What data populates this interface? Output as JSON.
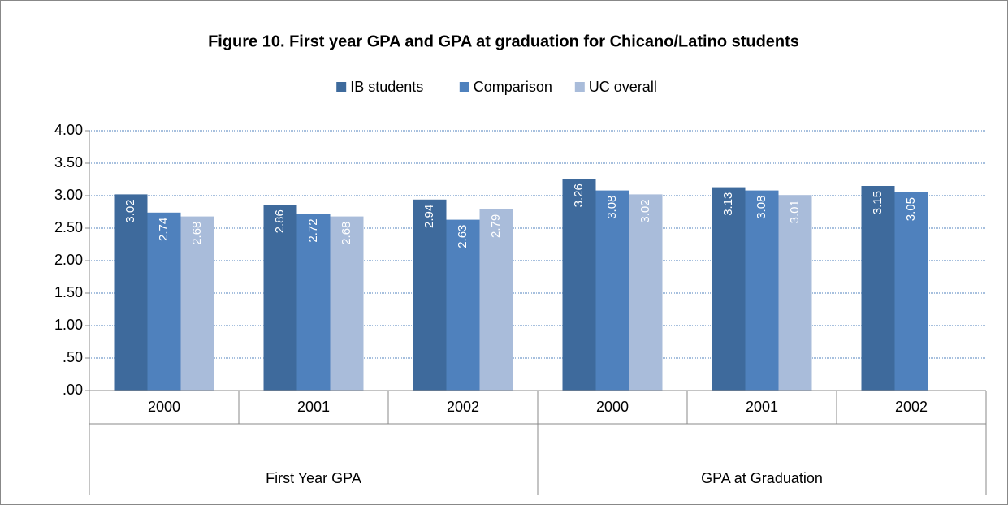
{
  "chart_data": {
    "type": "bar",
    "title": "Figure 10. First year GPA and GPA at graduation for Chicano/Latino students",
    "groups": [
      {
        "name": "First Year GPA",
        "categories": [
          "2000",
          "2001",
          "2002"
        ]
      },
      {
        "name": "GPA at Graduation",
        "categories": [
          "2000",
          "2001",
          "2002"
        ]
      }
    ],
    "series": [
      {
        "name": "IB students",
        "color": "#3e6a9c",
        "values": [
          3.02,
          2.86,
          2.94,
          3.26,
          3.13,
          3.15
        ]
      },
      {
        "name": "Comparison",
        "color": "#4f81bd",
        "values": [
          2.74,
          2.72,
          2.63,
          3.08,
          3.08,
          3.05
        ]
      },
      {
        "name": "UC overall",
        "color": "#a9bcda",
        "values": [
          2.68,
          2.68,
          2.79,
          3.02,
          3.01,
          null
        ]
      }
    ],
    "ylim": [
      0,
      4
    ],
    "yticks": [
      {
        "value": 0,
        "label": ".00"
      },
      {
        "value": 0.5,
        "label": ".50"
      },
      {
        "value": 1,
        "label": "1.00"
      },
      {
        "value": 1.5,
        "label": "1.50"
      },
      {
        "value": 2,
        "label": "2.00"
      },
      {
        "value": 2.5,
        "label": "2.50"
      },
      {
        "value": 3,
        "label": "3.00"
      },
      {
        "value": 3.5,
        "label": "3.50"
      },
      {
        "value": 4,
        "label": "4.00"
      }
    ],
    "grid": true,
    "legend": "top"
  }
}
